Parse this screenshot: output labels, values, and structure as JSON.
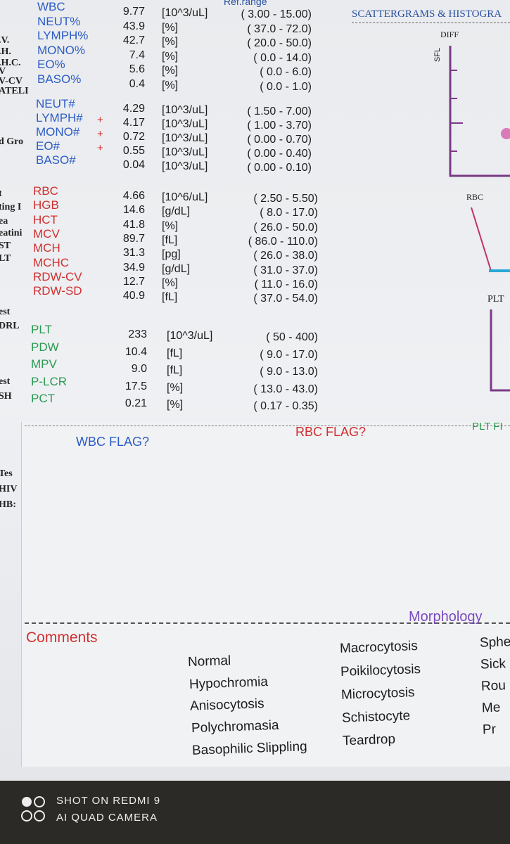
{
  "header": {
    "ref_range": "Ref.range",
    "scatter_title": "SCATTERGRAMS & HISTOGRA"
  },
  "groups": [
    {
      "rows": [
        {
          "name": "WBC",
          "flag": null,
          "value": "9.77",
          "unit": "[10^3/uL]",
          "range": "( 3.00 - 15.00)"
        },
        {
          "name": "NEUT%",
          "flag": null,
          "value": "43.9",
          "unit": "[%]",
          "range": "( 37.0 - 72.0)"
        },
        {
          "name": "LYMPH%",
          "flag": null,
          "value": "42.7",
          "unit": "[%]",
          "range": "( 20.0 - 50.0)"
        },
        {
          "name": "MONO%",
          "flag": null,
          "value": "7.4",
          "unit": "[%]",
          "range": "( 0.0 - 14.0)"
        },
        {
          "name": "EO%",
          "flag": null,
          "value": "5.6",
          "unit": "[%]",
          "range": "( 0.0 - 6.0)"
        },
        {
          "name": "BASO%",
          "flag": null,
          "value": "0.4",
          "unit": "[%]",
          "range": "( 0.0 - 1.0)"
        }
      ]
    },
    {
      "rows": [
        {
          "name": "NEUT#",
          "flag": null,
          "value": "4.29",
          "unit": "[10^3/uL]",
          "range": "( 1.50 - 7.00)"
        },
        {
          "name": "LYMPH#",
          "flag": "+",
          "value": "4.17",
          "unit": "[10^3/uL]",
          "range": "( 1.00 - 3.70)"
        },
        {
          "name": "MONO#",
          "flag": "+",
          "value": "0.72",
          "unit": "[10^3/uL]",
          "range": "( 0.00 - 0.70)"
        },
        {
          "name": "EO#",
          "flag": "+",
          "value": "0.55",
          "unit": "[10^3/uL]",
          "range": "( 0.00 - 0.40)"
        },
        {
          "name": "BASO#",
          "flag": null,
          "value": "0.04",
          "unit": "[10^3/uL]",
          "range": "( 0.00 - 0.10)"
        }
      ]
    },
    {
      "rows": [
        {
          "name": "RBC",
          "flag": null,
          "value": "4.66",
          "unit": "[10^6/uL]",
          "range": "( 2.50 - 5.50)"
        },
        {
          "name": "HGB",
          "flag": null,
          "value": "14.6",
          "unit": "[g/dL]",
          "range": "( 8.0 - 17.0)"
        },
        {
          "name": "HCT",
          "flag": null,
          "value": "41.8",
          "unit": "[%]",
          "range": "( 26.0 - 50.0)"
        },
        {
          "name": "MCV",
          "flag": null,
          "value": "89.7",
          "unit": "[fL]",
          "range": "( 86.0 - 110.0)"
        },
        {
          "name": "MCH",
          "flag": null,
          "value": "31.3",
          "unit": "[pg]",
          "range": "( 26.0 - 38.0)"
        },
        {
          "name": "MCHC",
          "flag": null,
          "value": "34.9",
          "unit": "[g/dL]",
          "range": "( 31.0 - 37.0)"
        },
        {
          "name": "RDW-CV",
          "flag": null,
          "value": "12.7",
          "unit": "[%]",
          "range": "( 11.0 - 16.0)"
        },
        {
          "name": "RDW-SD",
          "flag": null,
          "value": "40.9",
          "unit": "[fL]",
          "range": "( 37.0 - 54.0)"
        }
      ]
    },
    {
      "rows": [
        {
          "name": "PLT",
          "flag": null,
          "value": "233",
          "unit": "[10^3/uL]",
          "range": "( 50 - 400)"
        },
        {
          "name": "PDW",
          "flag": null,
          "value": "10.4",
          "unit": "[fL]",
          "range": "( 9.0 - 17.0)"
        },
        {
          "name": "MPV",
          "flag": null,
          "value": "9.0",
          "unit": "[fL]",
          "range": "( 9.0 - 13.0)"
        },
        {
          "name": "P-LCR",
          "flag": null,
          "value": "17.5",
          "unit": "[%]",
          "range": "( 13.0 - 43.0)"
        },
        {
          "name": "PCT",
          "flag": null,
          "value": "0.21",
          "unit": "[%]",
          "range": "( 0.17 - 0.35)"
        }
      ]
    }
  ],
  "side_panel": {
    "diff": "DIFF",
    "sfl": "SFL",
    "rbc": "RBC",
    "plt": "PLT"
  },
  "left_fragments": [
    ".V.",
    ".H.",
    ".H.C.",
    "V",
    "V-CV",
    "ATELI",
    "d Gro",
    "t",
    "ting I",
    "ea",
    "eatini",
    "ST",
    "LT",
    "est",
    "DRL",
    "est",
    "SH",
    "Tes",
    "HIV",
    "HB:"
  ],
  "flags": {
    "wbc": "WBC FLAG?",
    "rbc": "RBC FLAG?",
    "plt": "PLT FI"
  },
  "comments": {
    "title": "Comments",
    "morphology": "Morphology",
    "columns": [
      [
        "Normal",
        "Hypochromia",
        "Anisocytosis",
        "Polychromasia",
        "Basophilic Slippling"
      ],
      [
        "Macrocytosis",
        "Poikilocytosis",
        "Microcytosis",
        "Schistocyte",
        "Teardrop"
      ],
      [
        "Sphe",
        "Sick",
        "Rou",
        "Me",
        "Pr"
      ]
    ]
  },
  "watermark": {
    "line1": "SHOT ON REDMI 9",
    "line2": "AI QUAD CAMERA"
  }
}
